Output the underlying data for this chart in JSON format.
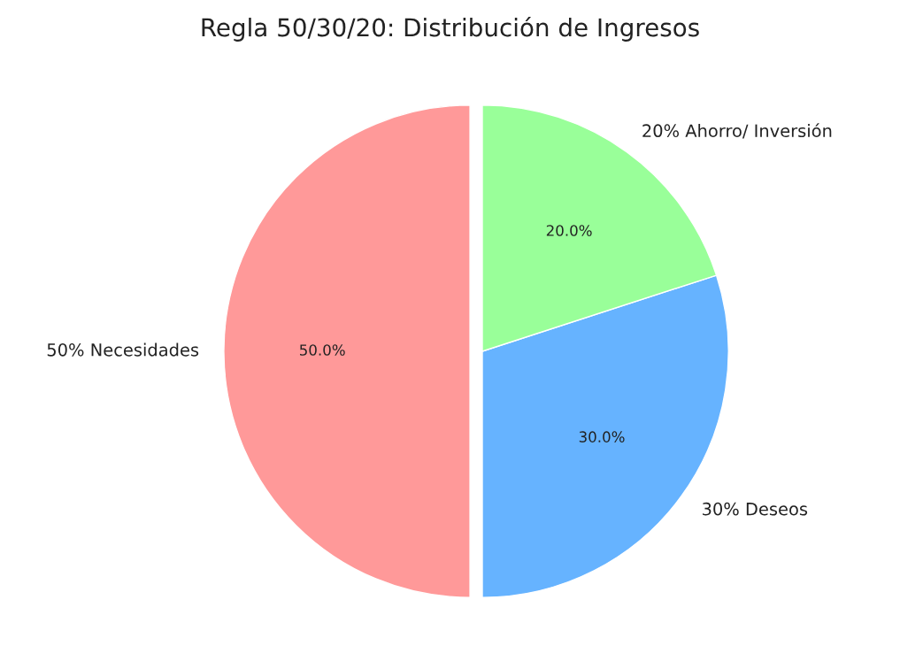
{
  "chart_data": {
    "type": "pie",
    "title": "Regla 50/30/20: Distribución de Ingresos",
    "categories": [
      "50% Necesidades",
      "30% Deseos",
      "20% Ahorro/ Inversión"
    ],
    "values": [
      50,
      30,
      20
    ],
    "colors": [
      "#ff9999",
      "#66b3ff",
      "#99ff99"
    ],
    "value_labels": [
      "50.0%",
      "30.0%",
      "20.0%"
    ]
  }
}
